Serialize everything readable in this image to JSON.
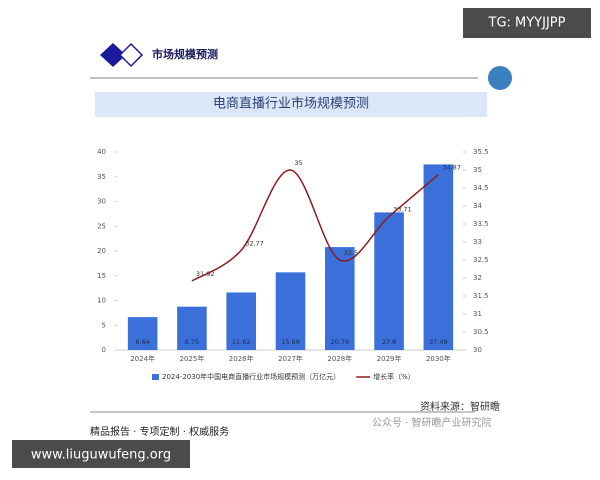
{
  "header": {
    "title": "市场规模预测"
  },
  "watermark_top": "TG: MYYJJPP",
  "source": "资料来源：智研瞻",
  "footer": {
    "services": "精品报告 · 专项定制 · 权威服务",
    "account": "公众号 · 智研瞻产业研究院"
  },
  "watermark_bottom": "www.liuguwufeng.org",
  "chart_data": {
    "type": "bar",
    "title": "电商直播行业市场规模预测",
    "categories": [
      "2024年",
      "2025年",
      "2026年",
      "2027年",
      "2028年",
      "2029年",
      "2030年"
    ],
    "series": [
      {
        "name": "2024-2030年中国电商直播行业市场规模预测（万亿元）",
        "type": "bar",
        "color": "#3b6fd9",
        "values": [
          6.64,
          8.75,
          11.62,
          15.69,
          20.79,
          27.8,
          37.49
        ]
      },
      {
        "name": "增长率（%）",
        "type": "line",
        "axis": "y2",
        "color": "#8b1c1c",
        "values": [
          null,
          31.92,
          32.77,
          35,
          32.5,
          33.71,
          34.87
        ]
      }
    ],
    "ylim": [
      0,
      40
    ],
    "yticks": [
      0,
      5,
      10,
      15,
      20,
      25,
      30,
      35,
      40
    ],
    "y2lim": [
      30,
      35.5
    ],
    "y2ticks": [
      30,
      30.5,
      31,
      31.5,
      32,
      32.5,
      33,
      33.5,
      34,
      34.5,
      35,
      35.5
    ],
    "legend": "bottom",
    "grid": false
  }
}
